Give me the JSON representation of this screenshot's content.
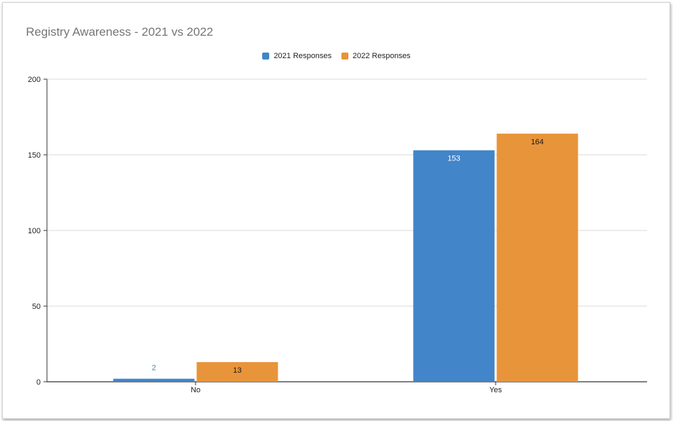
{
  "colors": {
    "series_2021": "#4285c9",
    "series_2022": "#e8943a",
    "grid": "#d9d9d9",
    "axis": "#333333",
    "tick_text": "#222222",
    "title_text": "#757575"
  },
  "chart_data": {
    "type": "bar",
    "title": "Registry Awareness - 2021 vs 2022",
    "xlabel": "",
    "ylabel": "",
    "categories": [
      "No",
      "Yes"
    ],
    "series": [
      {
        "name": "2021 Responses",
        "values": [
          2,
          153
        ]
      },
      {
        "name": "2022 Responses",
        "values": [
          13,
          164
        ]
      }
    ],
    "ylim": [
      0,
      200
    ],
    "yticks": [
      0,
      50,
      100,
      150,
      200
    ],
    "grid": true,
    "legend": "top-center",
    "data_labels": true
  }
}
